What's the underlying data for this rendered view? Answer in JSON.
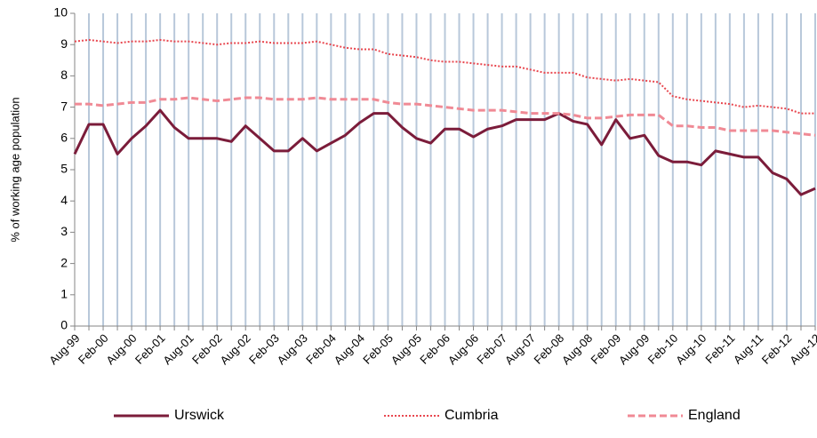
{
  "chart_data": {
    "type": "line",
    "y_label": "% of working age population",
    "categories": [
      "Aug-99",
      null,
      "Feb-00",
      null,
      "Aug-00",
      null,
      "Feb-01",
      null,
      "Aug-01",
      null,
      "Feb-02",
      null,
      "Aug-02",
      null,
      "Feb-03",
      null,
      "Aug-03",
      null,
      "Feb-04",
      null,
      "Aug-04",
      null,
      "Feb-05",
      null,
      "Aug-05",
      null,
      "Feb-06",
      null,
      "Aug-06",
      null,
      "Feb-07",
      null,
      "Aug-07",
      null,
      "Feb-08",
      null,
      "Aug-08",
      null,
      "Feb-09",
      null,
      "Aug-09",
      null,
      "Feb-10",
      null,
      "Aug-10",
      null,
      "Feb-11",
      null,
      "Aug-11",
      null,
      "Feb-12",
      null,
      "Aug-12"
    ],
    "series": [
      {
        "name": "Urswick",
        "color": "#7b1c3a",
        "style": "solid",
        "values": [
          5.5,
          6.45,
          6.45,
          5.5,
          6.0,
          6.4,
          6.9,
          6.35,
          6.0,
          6.0,
          6.0,
          5.9,
          6.4,
          6.0,
          5.6,
          5.6,
          6.0,
          5.6,
          5.85,
          6.1,
          6.5,
          6.8,
          6.8,
          6.35,
          6.0,
          5.85,
          6.3,
          6.3,
          6.05,
          6.3,
          6.4,
          6.6,
          6.6,
          6.6,
          6.8,
          6.55,
          6.45,
          5.8,
          6.6,
          6.0,
          6.1,
          5.45,
          5.25,
          5.25,
          5.15,
          5.6,
          5.5,
          5.4,
          5.4,
          4.9,
          4.7,
          4.2,
          4.4
        ]
      },
      {
        "name": "Cumbria",
        "color": "#e8474f",
        "style": "dotted",
        "values": [
          9.1,
          9.15,
          9.1,
          9.05,
          9.1,
          9.1,
          9.15,
          9.1,
          9.1,
          9.05,
          9.0,
          9.05,
          9.05,
          9.1,
          9.05,
          9.05,
          9.05,
          9.1,
          9.0,
          8.9,
          8.85,
          8.85,
          8.7,
          8.65,
          8.6,
          8.5,
          8.45,
          8.45,
          8.4,
          8.35,
          8.3,
          8.3,
          8.2,
          8.1,
          8.1,
          8.1,
          7.95,
          7.9,
          7.85,
          7.9,
          7.85,
          7.8,
          7.35,
          7.25,
          7.2,
          7.15,
          7.1,
          7.0,
          7.05,
          7.0,
          6.95,
          6.8,
          6.8
        ]
      },
      {
        "name": "England",
        "color": "#f08a95",
        "style": "dashed",
        "values": [
          7.1,
          7.1,
          7.05,
          7.1,
          7.15,
          7.15,
          7.25,
          7.25,
          7.3,
          7.25,
          7.2,
          7.25,
          7.3,
          7.3,
          7.25,
          7.25,
          7.25,
          7.3,
          7.25,
          7.25,
          7.25,
          7.25,
          7.15,
          7.1,
          7.1,
          7.05,
          7.0,
          6.95,
          6.9,
          6.9,
          6.9,
          6.85,
          6.8,
          6.8,
          6.8,
          6.75,
          6.65,
          6.65,
          6.7,
          6.75,
          6.75,
          6.75,
          6.4,
          6.4,
          6.35,
          6.35,
          6.25,
          6.25,
          6.25,
          6.25,
          6.2,
          6.15,
          6.1
        ]
      }
    ],
    "ylim": [
      0,
      10
    ],
    "yticks": [
      0,
      1,
      2,
      3,
      4,
      5,
      6,
      7,
      8,
      9,
      10
    ],
    "grid": "x",
    "legend": "bottom"
  }
}
